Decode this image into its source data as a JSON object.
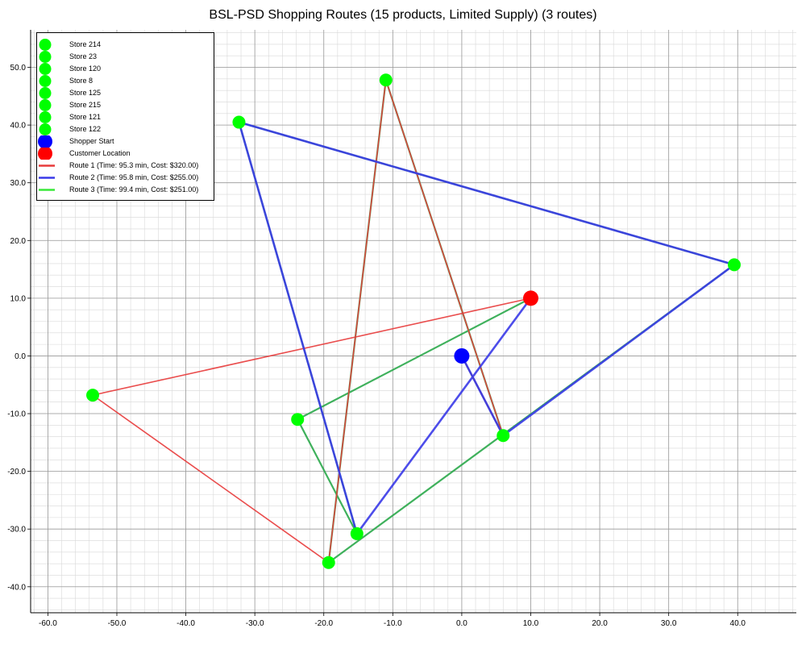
{
  "title": "BSL-PSD Shopping Routes (15 products, Limited Supply) (3 routes)",
  "colors": {
    "store": "#00ff00",
    "shopper_start": "#0000ff",
    "customer": "#ff0000",
    "route_1": "#e83a3a",
    "route_2": "#3a3ae8",
    "route_3": "#3ae83a",
    "route_overlap": "#2aa84a",
    "grid_major": "#9a9a9a",
    "grid_minor": "#d8d8d8"
  },
  "legend": {
    "stores": [
      {
        "label": "Store 214"
      },
      {
        "label": "Store 23"
      },
      {
        "label": "Store 120"
      },
      {
        "label": "Store 8"
      },
      {
        "label": "Store 125"
      },
      {
        "label": "Store 215"
      },
      {
        "label": "Store 121"
      },
      {
        "label": "Store 122"
      }
    ],
    "shopper_start": "Shopper Start",
    "customer_location": "Customer Location",
    "routes": [
      {
        "label": "Route 1 (Time: 95.3 min, Cost: $320.00)"
      },
      {
        "label": "Route 2 (Time: 95.8 min, Cost: $255.00)"
      },
      {
        "label": "Route 3 (Time: 99.4 min, Cost: $251.00)"
      }
    ]
  },
  "chart_data": {
    "type": "scatter",
    "title": "BSL-PSD Shopping Routes (15 products, Limited Supply) (3 routes)",
    "xlim": [
      -62.5,
      48.5
    ],
    "ylim": [
      -44.5,
      56.5
    ],
    "x_ticks": [
      "-60.0",
      "-50.0",
      "-40.0",
      "-30.0",
      "-20.0",
      "-10.0",
      "0.0",
      "10.0",
      "20.0",
      "30.0",
      "40.0"
    ],
    "y_ticks": [
      "-40.0",
      "-30.0",
      "-20.0",
      "-10.0",
      "0.0",
      "10.0",
      "20.0",
      "30.0",
      "40.0",
      "50.0"
    ],
    "grid": true,
    "legend_position": "upper-left",
    "shopper_start": {
      "x": 0.0,
      "y": 0.0
    },
    "customer_location": {
      "x": 10.0,
      "y": 10.0
    },
    "stores": [
      {
        "x": -53.5,
        "y": -6.8
      },
      {
        "x": -32.3,
        "y": 40.5
      },
      {
        "x": -11.0,
        "y": 47.8
      },
      {
        "x": 39.5,
        "y": 15.8
      },
      {
        "x": -23.8,
        "y": -11.0
      },
      {
        "x": -15.2,
        "y": -30.8
      },
      {
        "x": -19.3,
        "y": -35.8
      },
      {
        "x": 6.0,
        "y": -13.8
      }
    ],
    "routes": [
      {
        "name": "Route 1 (Time: 95.3 min, Cost: $320.00)",
        "points": [
          [
            0.0,
            0.0
          ],
          [
            6.0,
            -13.8
          ],
          [
            -11.0,
            47.8
          ],
          [
            -19.3,
            -35.8
          ],
          [
            -53.5,
            -6.8
          ],
          [
            10.0,
            10.0
          ]
        ]
      },
      {
        "name": "Route 2 (Time: 95.8 min, Cost: $255.00)",
        "points": [
          [
            0.0,
            0.0
          ],
          [
            6.0,
            -13.8
          ],
          [
            39.5,
            15.8
          ],
          [
            -32.3,
            40.5
          ],
          [
            -15.2,
            -30.8
          ],
          [
            10.0,
            10.0
          ]
        ]
      },
      {
        "name": "Route 3 (Time: 99.4 min, Cost: $251.00)",
        "points": [
          [
            0.0,
            0.0
          ],
          [
            6.0,
            -13.8
          ],
          [
            -11.0,
            47.8
          ],
          [
            -19.3,
            -35.8
          ],
          [
            39.5,
            15.8
          ],
          [
            -32.3,
            40.5
          ],
          [
            -15.2,
            -30.8
          ],
          [
            -23.8,
            -11.0
          ],
          [
            10.0,
            10.0
          ]
        ]
      }
    ]
  }
}
